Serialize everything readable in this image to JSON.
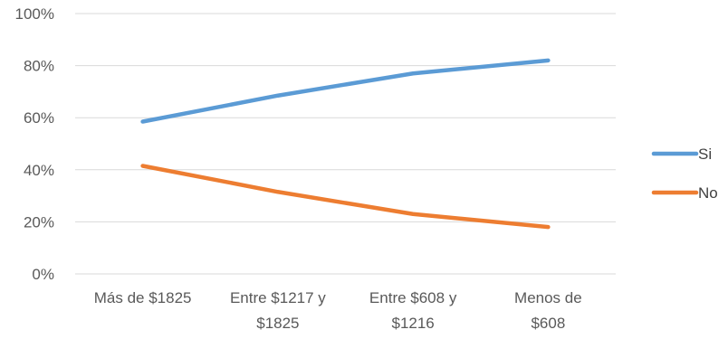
{
  "chart_data": {
    "type": "line",
    "categories": [
      [
        "Más de $1825"
      ],
      [
        "Entre $1217 y",
        "$1825"
      ],
      [
        "Entre $608 y",
        "$1216"
      ],
      [
        "Menos de",
        "$608"
      ]
    ],
    "series": [
      {
        "name": "Si",
        "values": [
          58.5,
          68.5,
          77,
          82
        ],
        "color": "#5B9BD5"
      },
      {
        "name": "No",
        "values": [
          41.5,
          31.5,
          23,
          18
        ],
        "color": "#ED7D31"
      }
    ],
    "ylim": [
      0,
      100
    ],
    "yticks": [
      "0%",
      "20%",
      "40%",
      "60%",
      "80%",
      "100%"
    ],
    "yunit": "%",
    "grid": true,
    "legend": "right",
    "title": "",
    "xlabel": "",
    "ylabel": ""
  }
}
